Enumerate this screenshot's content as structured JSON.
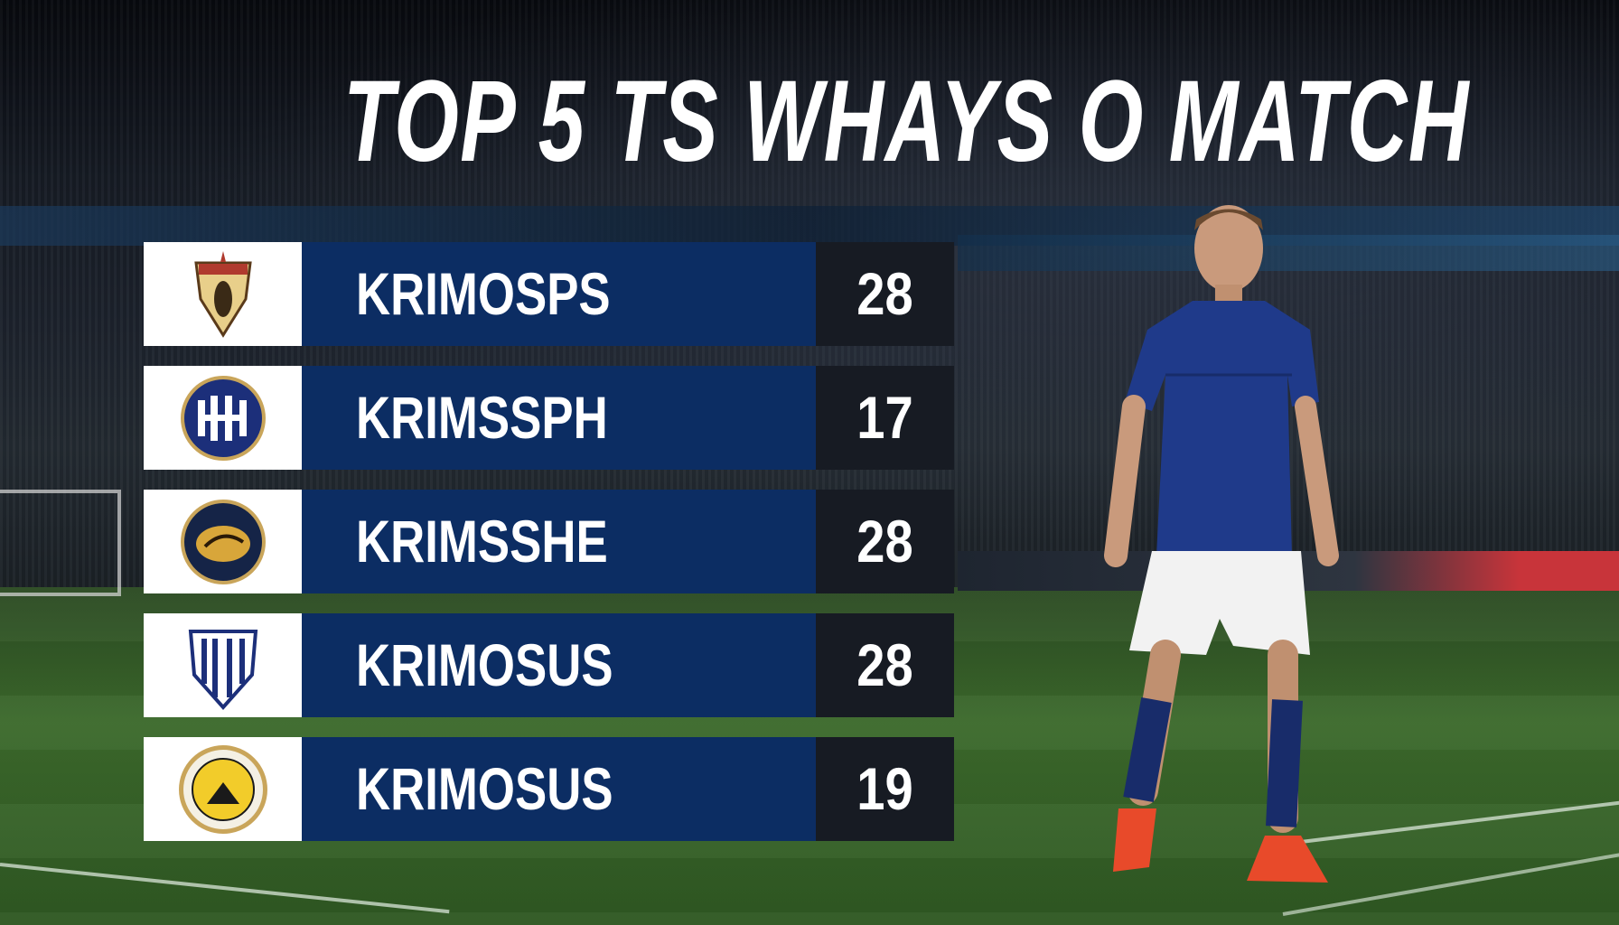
{
  "title": "TOP 5 TS WHAYS O MATCH",
  "rows": [
    {
      "name": "KRIMOSPS",
      "value": "28",
      "crest_icon": "shield-crest-gold"
    },
    {
      "name": "KRIMSSPH",
      "value": "17",
      "crest_icon": "round-crest-blue"
    },
    {
      "name": "KRIMSSHE",
      "value": "28",
      "crest_icon": "round-crest-navy-gold"
    },
    {
      "name": "KRIMOSUS",
      "value": "28",
      "crest_icon": "shield-crest-striped"
    },
    {
      "name": "KRIMOSUS",
      "value": "19",
      "crest_icon": "round-crest-yellow"
    }
  ],
  "colors": {
    "name_bar": "#0c2d63",
    "value_box": "#171b23",
    "logo_box": "#ffffff",
    "pitch": "#3c6a2c"
  }
}
